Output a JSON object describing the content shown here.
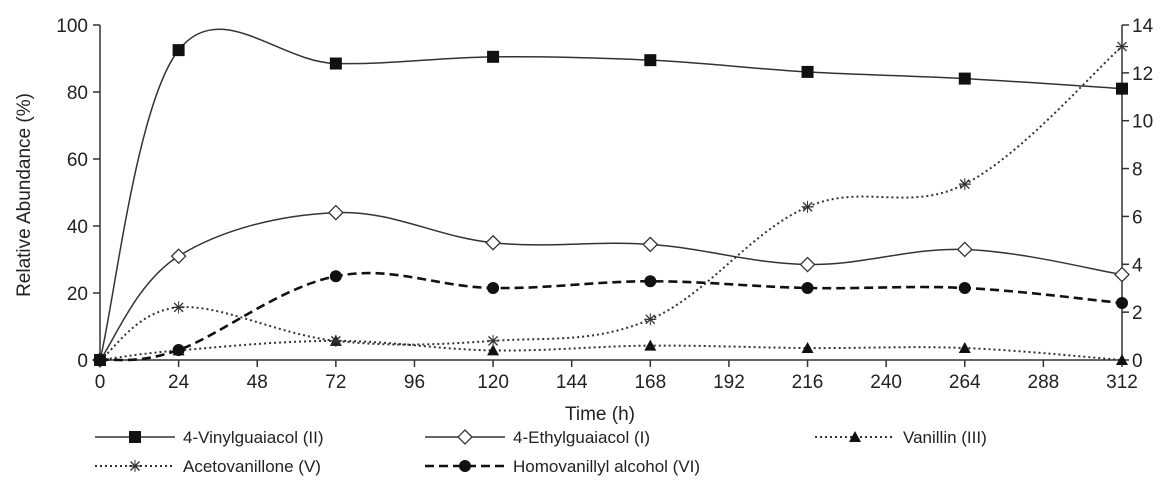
{
  "chart_data": {
    "type": "line",
    "title": "",
    "xlabel": "Time (h)",
    "ylabel": "Relative Abundance (%)",
    "y2label": "",
    "x_ticks": [
      0,
      24,
      48,
      72,
      96,
      120,
      144,
      168,
      192,
      216,
      240,
      264,
      288,
      312
    ],
    "y_ticks": [
      0,
      20,
      40,
      60,
      80,
      100
    ],
    "y2_ticks": [
      0,
      2,
      4,
      6,
      8,
      10,
      12,
      14
    ],
    "xlim": [
      0,
      312
    ],
    "ylim": [
      0,
      100
    ],
    "y2lim": [
      0,
      14
    ],
    "grid": false,
    "legend_position": "bottom",
    "x": [
      0,
      24,
      72,
      120,
      168,
      216,
      264,
      312
    ],
    "series": [
      {
        "name": "4-Vinylguaiacol (II)",
        "axis": "left",
        "values": [
          0,
          92.5,
          88.5,
          90.5,
          89.5,
          86,
          84,
          81
        ],
        "marker": "square-filled",
        "line_style": "solid",
        "color": "#333333"
      },
      {
        "name": "4-Ethylguaiacol (I)",
        "axis": "left",
        "values": [
          0,
          31,
          44,
          35,
          34.5,
          28.5,
          33,
          25.5
        ],
        "marker": "diamond-open",
        "line_style": "solid",
        "color": "#333333"
      },
      {
        "name": "Vanillin (III)",
        "axis": "right",
        "values": [
          0,
          0.4,
          0.8,
          0.4,
          0.6,
          0.5,
          0.5,
          0
        ],
        "marker": "triangle-filled",
        "line_style": "dotted",
        "color": "#333333"
      },
      {
        "name": "Acetovanillone (V)",
        "axis": "right",
        "values": [
          0,
          2.2,
          0.8,
          0.8,
          1.7,
          6.4,
          7.35,
          13.1
        ],
        "marker": "asterisk",
        "line_style": "dotted",
        "color": "#333333"
      },
      {
        "name": "Homovanillyl alcohol (VI)",
        "axis": "left",
        "values": [
          0,
          3,
          25,
          21.5,
          23.5,
          21.5,
          21.5,
          17
        ],
        "marker": "circle-filled",
        "line_style": "dashed",
        "color": "#111111"
      }
    ]
  }
}
